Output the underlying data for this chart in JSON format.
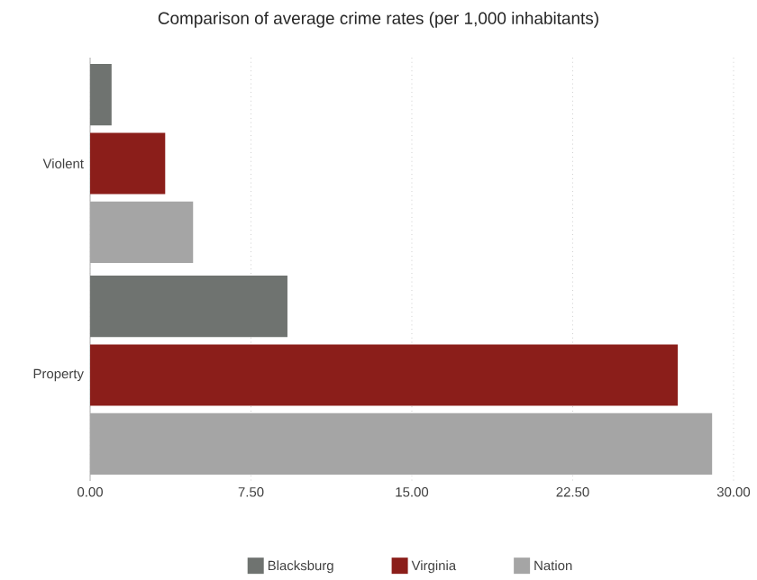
{
  "chart_data": {
    "type": "bar",
    "orientation": "horizontal",
    "title": "Comparison of average crime rates (per 1,000 inhabitants)",
    "categories": [
      "Violent",
      "Property"
    ],
    "series": [
      {
        "name": "Blacksburg",
        "color": "#6f7370",
        "values": [
          1.0,
          9.2
        ]
      },
      {
        "name": "Virginia",
        "color": "#8b1e1a",
        "values": [
          3.5,
          27.4
        ]
      },
      {
        "name": "Nation",
        "color": "#a5a5a5",
        "values": [
          4.8,
          29.0
        ]
      }
    ],
    "xlim": [
      0,
      30
    ],
    "xticks": [
      {
        "value": 0,
        "label": "0.00"
      },
      {
        "value": 7.5,
        "label": "7.50"
      },
      {
        "value": 15,
        "label": "15.00"
      },
      {
        "value": 22.5,
        "label": "22.50"
      },
      {
        "value": 30,
        "label": "30.00"
      }
    ],
    "grid": "x",
    "legend": "bottom"
  }
}
